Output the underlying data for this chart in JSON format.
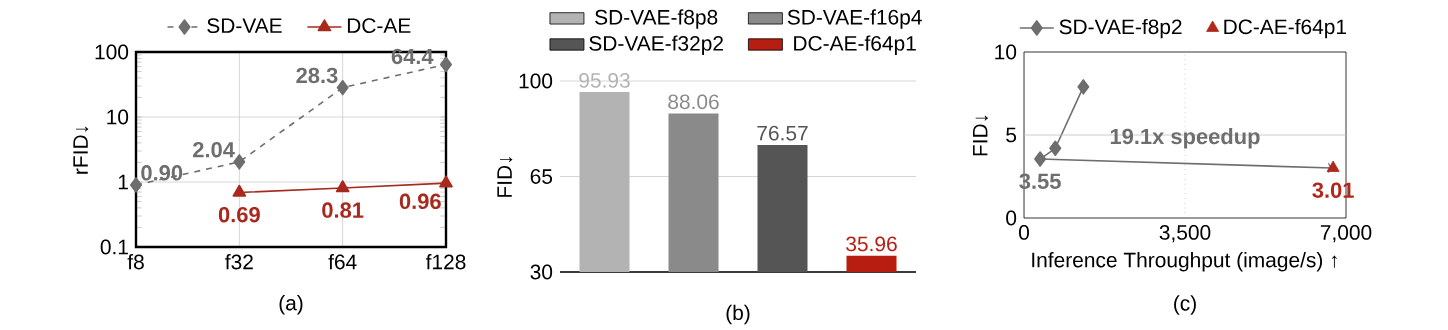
{
  "chart_data": [
    {
      "type": "line",
      "categories": [
        "f8",
        "f32",
        "f64",
        "f128"
      ],
      "series": [
        {
          "name": "SD-VAE",
          "color": "#6e6e6e",
          "values": [
            0.9,
            2.04,
            28.3,
            64.4
          ],
          "value_labels": [
            "0.90",
            "2.04",
            "28.3",
            "64.4"
          ],
          "marker": "diamond",
          "line_style": "dashed"
        },
        {
          "name": "DC-AE",
          "color": "#a8291d",
          "values": [
            null,
            0.69,
            0.81,
            0.96
          ],
          "value_labels": [
            null,
            "0.69",
            "0.81",
            "0.96"
          ],
          "marker": "triangle",
          "line_style": "solid"
        }
      ],
      "log": "y",
      "ylim": [
        0.1,
        100
      ],
      "yticks": [
        0.1,
        1,
        10,
        100
      ],
      "ylabel": "rFID↓",
      "xlabel": "(a)",
      "grid": true,
      "legend": "top"
    },
    {
      "type": "bar",
      "categories": [
        null,
        null,
        null,
        null
      ],
      "series": [
        {
          "name": "SD-VAE-f8p8",
          "color": "#b3b3b3",
          "values": [
            95.93,
            null,
            null,
            null
          ]
        },
        {
          "name": "SD-VAE-f16p4",
          "color": "#8a8a8a",
          "values": [
            null,
            88.06,
            null,
            null
          ]
        },
        {
          "name": "SD-VAE-f32p2",
          "color": "#555555",
          "values": [
            null,
            null,
            76.57,
            null
          ]
        },
        {
          "name": "DC-AE-f64p1",
          "color": "#b81d12",
          "values": [
            null,
            null,
            null,
            35.96
          ]
        }
      ],
      "ylim": [
        30,
        100
      ],
      "yticks": [
        30,
        65,
        100
      ],
      "ylabel": "FID↓",
      "xlabel": "(b)",
      "grid": "y",
      "legend": "top",
      "data_labels": true
    },
    {
      "type": "scatter",
      "series": [
        {
          "name": "SD-VAE-f8p2",
          "type": "line",
          "color": "#6e6e6e",
          "x": [
            350,
            680,
            1290
          ],
          "values": [
            3.55,
            4.2,
            7.9
          ],
          "value_labels": [
            "3.55",
            null,
            null
          ],
          "marker": "diamond",
          "line_style": "solid"
        },
        {
          "name": "DC-AE-f64p1",
          "type": "scatter",
          "color": "#b0271b",
          "x": [
            6720
          ],
          "values": [
            3.01
          ],
          "value_labels": [
            "3.01"
          ],
          "marker": "triangle"
        }
      ],
      "xlim": [
        0,
        7000
      ],
      "xticks": [
        0,
        {
          "value": 3500,
          "label": "3,500"
        },
        {
          "value": 7000,
          "label": "7,000"
        }
      ],
      "ylim": [
        0,
        10
      ],
      "yticks": [
        0,
        5,
        10
      ],
      "ylabel": "FID↓",
      "xlabel": "Inference Throughput (image/s) ↑",
      "legend": "top",
      "ref_lines": [
        {
          "axis": "x",
          "value": 3500,
          "color": "#b2b2b2",
          "line_style": "dotted"
        },
        {
          "axis": "y",
          "value": 5,
          "color": "#bfbfbf",
          "line_style": "solid"
        }
      ],
      "annotations": [
        "19.1x speedup",
        "(c)"
      ]
    }
  ]
}
